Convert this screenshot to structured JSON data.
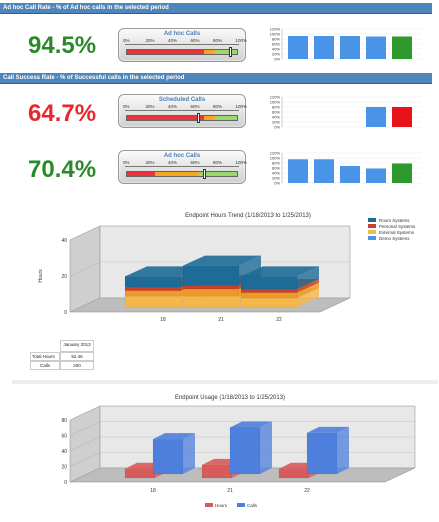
{
  "sections": [
    {
      "header": "Ad hoc Call Rate - % of Ad hoc calls in the selected period"
    },
    {
      "header": "Call Success Rate - % of Successful calls in the selected period"
    }
  ],
  "gauge_ticks": [
    "0%",
    "20%",
    "40%",
    "60%",
    "80%",
    "100%"
  ],
  "mini_ticks": [
    "120%",
    "100%",
    "80%",
    "60%",
    "40%",
    "20%",
    "0%"
  ],
  "metrics": [
    {
      "value": "94.5%",
      "color": "#2a8a2a",
      "gauge_title": "Ad hoc Calls",
      "level": 0.945,
      "bars": [
        {
          "pct": 92,
          "color": "#4a94e8"
        },
        {
          "pct": 92,
          "color": "#4a94e8"
        },
        {
          "pct": 92,
          "color": "#4a94e8"
        },
        {
          "pct": 90,
          "color": "#4a94e8"
        },
        {
          "pct": 90,
          "color": "#2e9a2e"
        }
      ]
    },
    {
      "value": "64.7%",
      "color": "#e8282e",
      "gauge_title": "Scheduled Calls",
      "level": 0.647,
      "bars": [
        {
          "pct": 0,
          "color": "#4a94e8"
        },
        {
          "pct": 0,
          "color": "#4a94e8"
        },
        {
          "pct": 0,
          "color": "#4a94e8"
        },
        {
          "pct": 80,
          "color": "#4a94e8"
        },
        {
          "pct": 80,
          "color": "#e8121a"
        }
      ]
    },
    {
      "value": "70.4%",
      "color": "#2a8a2a",
      "gauge_title": "Ad hoc Calls",
      "level": 0.704,
      "bars": [
        {
          "pct": 95,
          "color": "#4a94e8"
        },
        {
          "pct": 95,
          "color": "#4a94e8"
        },
        {
          "pct": 68,
          "color": "#4a94e8"
        },
        {
          "pct": 58,
          "color": "#4a94e8"
        },
        {
          "pct": 78,
          "color": "#2e9a2e"
        }
      ]
    }
  ],
  "chart_data": [
    {
      "type": "bar",
      "title": "Endpoint Hours Trend (1/18/2013 to 1/25/2013)",
      "ylabel": "Hours",
      "categories": [
        "18",
        "21",
        "22"
      ],
      "yticks": [
        "0",
        "20",
        "40"
      ],
      "ylim": [
        0,
        40
      ],
      "series": [
        {
          "name": "Demo Systems",
          "values": [
            6,
            6,
            5
          ],
          "color": "#f5b74a"
        },
        {
          "name": "External Systems",
          "values": [
            3,
            4,
            3
          ],
          "color": "#e99a2a"
        },
        {
          "name": "Personal Systems",
          "values": [
            2,
            2,
            2
          ],
          "color": "#c8422a"
        },
        {
          "name": "Room Systems",
          "values": [
            6,
            11,
            7
          ],
          "color": "#1d6b96"
        }
      ],
      "legend": [
        "Room Systems",
        "Personal Systems",
        "External Systems",
        "Demo Systems"
      ],
      "legend_colors": [
        "#1d6b96",
        "#c8422a",
        "#f5b74a",
        "#4a94e8"
      ],
      "legend_position": "right"
    },
    {
      "type": "bar",
      "title": "Endpoint Usage (1/18/2013 to 1/25/2013)",
      "categories": [
        "18",
        "21",
        "22"
      ],
      "yticks": [
        "0",
        "20",
        "40",
        "60",
        "80"
      ],
      "ylim": [
        0,
        80
      ],
      "series": [
        {
          "name": "Hours",
          "values": [
            12,
            17,
            12
          ],
          "color": "#d85a5a"
        },
        {
          "name": "Calls",
          "values": [
            45,
            60,
            53
          ],
          "color": "#4f7fdc"
        }
      ],
      "legend_position": "bottom"
    }
  ],
  "summary_table": {
    "header": "January 2013",
    "rows": [
      {
        "label": "Total Hours",
        "value": "52.46"
      },
      {
        "label": "Calls",
        "value": "200"
      }
    ]
  }
}
